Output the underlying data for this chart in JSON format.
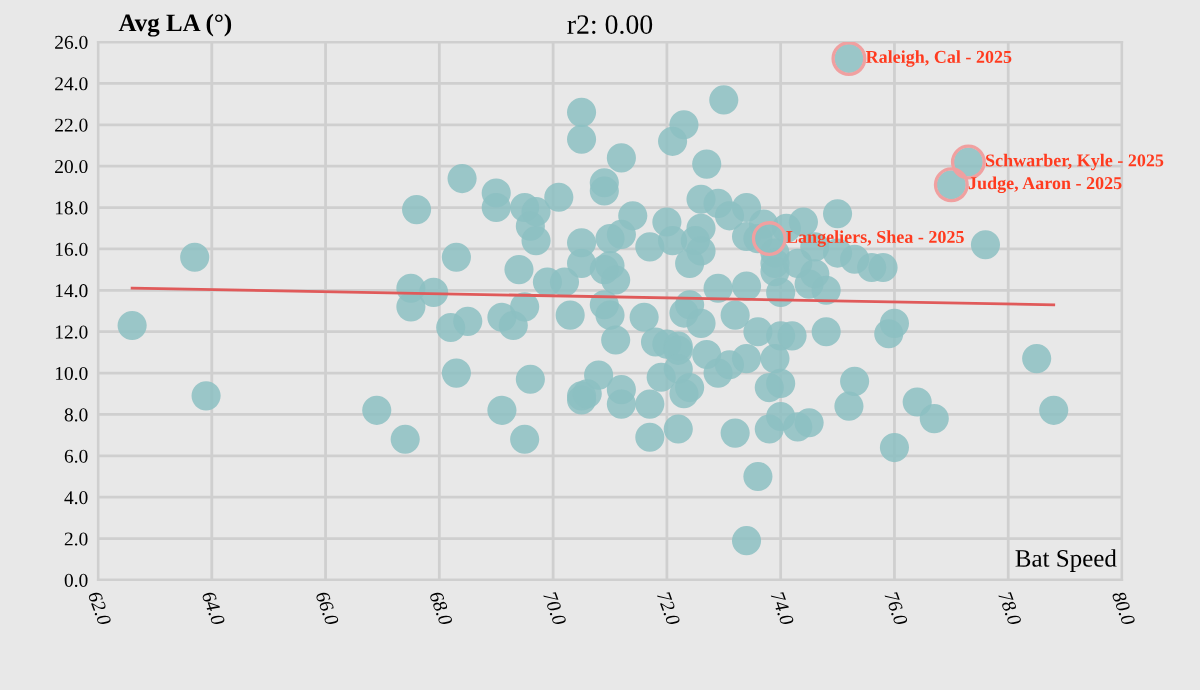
{
  "chart_data": {
    "type": "scatter",
    "title": "r2: 0.00",
    "xlabel": "Bat Speed",
    "ylabel": "Avg LA (°)",
    "xlim": [
      62,
      80
    ],
    "ylim": [
      0,
      26
    ],
    "xticks": [
      {
        "value": 62,
        "label": "62.0"
      },
      {
        "value": 64,
        "label": "64.0"
      },
      {
        "value": 66,
        "label": "66.0"
      },
      {
        "value": 68,
        "label": "68.0"
      },
      {
        "value": 70,
        "label": "70.0"
      },
      {
        "value": 72,
        "label": "72.0"
      },
      {
        "value": 74,
        "label": "74.0"
      },
      {
        "value": 76,
        "label": "76.0"
      },
      {
        "value": 78,
        "label": "78.0"
      },
      {
        "value": 80,
        "label": "80.0"
      }
    ],
    "yticks": [
      {
        "value": 0,
        "label": "0.0"
      },
      {
        "value": 2,
        "label": "2.0"
      },
      {
        "value": 4,
        "label": "4.0"
      },
      {
        "value": 6,
        "label": "6.0"
      },
      {
        "value": 8,
        "label": "8.0"
      },
      {
        "value": 10,
        "label": "10.0"
      },
      {
        "value": 12,
        "label": "12.0"
      },
      {
        "value": 14,
        "label": "14.0"
      },
      {
        "value": 16,
        "label": "16.0"
      },
      {
        "value": 18,
        "label": "18.0"
      },
      {
        "value": 20,
        "label": "20.0"
      },
      {
        "value": 22,
        "label": "22.0"
      },
      {
        "value": 24,
        "label": "24.0"
      },
      {
        "value": 26,
        "label": "26.0"
      }
    ],
    "grid": true,
    "series": [
      {
        "marker": "circle",
        "color": "#8cc0c2",
        "x": [
          62.6,
          63.7,
          63.9,
          66.9,
          67.4,
          67.6,
          67.5,
          67.5,
          67.9,
          68.3,
          68.4,
          68.2,
          68.5,
          69.0,
          69.0,
          69.5,
          69.7,
          69.6,
          69.7,
          70.1,
          69.4,
          69.1,
          69.3,
          69.5,
          69.9,
          70.2,
          70.3,
          70.5,
          70.5,
          70.5,
          70.5,
          68.3,
          69.1,
          69.5,
          69.6,
          70.5,
          70.5,
          73.0,
          72.3,
          72.1,
          71.2,
          72.7,
          70.9,
          70.9,
          72.6,
          72.9,
          73.4,
          73.1,
          71.4,
          72.0,
          73.7,
          74.1,
          74.4,
          75.0,
          72.6,
          71.2,
          71.0,
          71.7,
          72.1,
          72.5,
          72.6,
          73.4,
          73.6,
          73.8,
          73.9,
          73.9,
          73.9,
          74.3,
          74.6,
          75.0,
          75.3,
          75.6,
          75.8,
          77.6,
          75.2,
          77.3,
          77.0,
          70.9,
          71.0,
          71.1,
          70.9,
          71.0,
          72.4,
          72.9,
          73.4,
          74.0,
          74.5,
          74.6,
          74.8,
          71.6,
          72.4,
          72.3,
          72.6,
          73.2,
          73.6,
          74.0,
          74.2,
          74.8,
          75.9,
          76.0,
          71.1,
          71.8,
          72.0,
          72.2,
          72.2,
          72.7,
          70.8,
          70.6,
          71.2,
          71.2,
          71.9,
          71.7,
          72.4,
          72.3,
          72.2,
          72.9,
          73.1,
          73.4,
          73.9,
          73.8,
          74.0,
          74.0,
          74.3,
          74.5,
          73.8,
          73.2,
          72.2,
          71.7,
          73.6,
          73.4,
          75.2,
          75.3,
          76.0,
          76.4,
          76.7,
          78.8,
          78.5
        ],
        "values": [
          12.3,
          15.6,
          8.9,
          8.2,
          6.8,
          17.9,
          14.1,
          13.2,
          13.9,
          15.6,
          19.4,
          12.2,
          12.5,
          18.7,
          18.0,
          18.0,
          17.8,
          17.1,
          16.4,
          18.5,
          15.0,
          12.7,
          12.3,
          13.2,
          14.4,
          14.4,
          12.8,
          15.3,
          16.3,
          22.6,
          21.3,
          10.0,
          8.2,
          6.8,
          9.7,
          8.9,
          8.7,
          23.2,
          22.0,
          21.2,
          20.4,
          20.1,
          19.2,
          18.8,
          18.4,
          18.2,
          18.0,
          17.6,
          17.6,
          17.3,
          17.2,
          17.0,
          17.3,
          17.7,
          17.0,
          16.7,
          16.5,
          16.1,
          16.4,
          16.4,
          15.9,
          16.6,
          16.5,
          16.5,
          15.8,
          15.3,
          14.9,
          15.3,
          16.1,
          15.8,
          15.5,
          15.1,
          15.1,
          16.2,
          25.2,
          20.2,
          19.1,
          15.0,
          15.2,
          14.5,
          13.3,
          12.8,
          15.3,
          14.1,
          14.2,
          13.9,
          14.3,
          14.8,
          14.0,
          12.7,
          13.3,
          12.9,
          12.4,
          12.8,
          12.0,
          11.8,
          11.8,
          12.0,
          11.9,
          12.4,
          11.6,
          11.5,
          11.4,
          11.3,
          11.1,
          10.9,
          9.9,
          9.0,
          9.2,
          8.5,
          9.8,
          8.5,
          9.3,
          9.0,
          10.2,
          10.0,
          10.4,
          10.7,
          10.7,
          9.3,
          9.5,
          7.9,
          7.4,
          7.6,
          7.3,
          7.1,
          7.3,
          6.9,
          5.0,
          1.9,
          8.4,
          9.6,
          6.4,
          8.6,
          7.8,
          8.2,
          10.7
        ]
      },
      {
        "type": "line",
        "color": "#e05a5a",
        "x": [
          62.6,
          78.8
        ],
        "values": [
          14.1,
          13.3
        ]
      }
    ],
    "annotations": [
      {
        "text": "Raleigh, Cal - 2025",
        "x": 75.2,
        "y": 25.2
      },
      {
        "text": "Schwarber, Kyle - 2025",
        "x": 77.3,
        "y": 20.2
      },
      {
        "text": "Judge, Aaron - 2025",
        "x": 77.0,
        "y": 19.1
      },
      {
        "text": "Langeliers, Shea - 2025",
        "x": 73.8,
        "y": 16.5
      }
    ]
  }
}
